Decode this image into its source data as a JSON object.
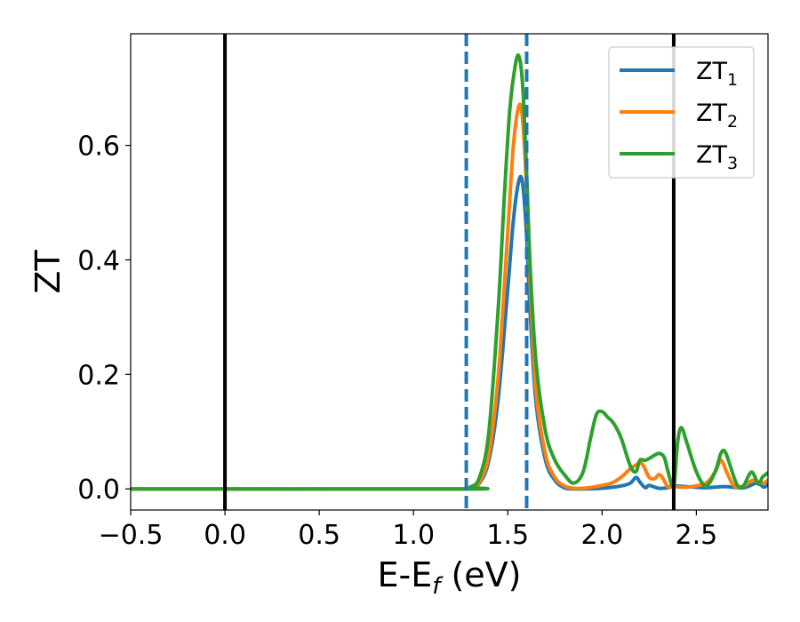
{
  "chart_data": {
    "type": "line",
    "xlabel_main": "E-E",
    "xlabel_sub": "f",
    "xlabel_unit": " (eV)",
    "ylabel": "ZT",
    "xlim": [
      -0.5,
      2.88
    ],
    "ylim": [
      -0.037,
      0.795
    ],
    "xticks": [
      -0.5,
      0.0,
      0.5,
      1.0,
      1.5,
      2.0,
      2.5
    ],
    "xtick_labels": [
      "−0.5",
      "0.0",
      "0.5",
      "1.0",
      "1.5",
      "2.0",
      "2.5"
    ],
    "yticks": [
      0.0,
      0.2,
      0.4,
      0.6
    ],
    "ytick_labels": [
      "0.0",
      "0.2",
      "0.4",
      "0.6"
    ],
    "grid": false,
    "legend_position": "top-right",
    "vlines": [
      {
        "x": 0.0,
        "style": "solid",
        "color": "#000000"
      },
      {
        "x": 2.38,
        "style": "solid",
        "color": "#000000"
      },
      {
        "x": 1.28,
        "style": "dashed",
        "color": "#1f77b4"
      },
      {
        "x": 1.6,
        "style": "dashed",
        "color": "#1f77b4"
      }
    ],
    "series": [
      {
        "name": "ZT",
        "subscript": "1",
        "color": "#1f77b4",
        "x": [
          -0.5,
          1.25,
          1.3,
          1.35,
          1.4,
          1.45,
          1.5,
          1.53,
          1.56,
          1.58,
          1.6,
          1.62,
          1.65,
          1.7,
          1.75,
          1.8,
          1.85,
          1.9,
          2.0,
          2.1,
          2.15,
          2.18,
          2.2,
          2.23,
          2.25,
          2.3,
          2.35,
          2.38,
          2.45,
          2.55,
          2.65,
          2.75,
          2.82,
          2.86,
          2.88
        ],
        "y": [
          0.0,
          0.0,
          0.002,
          0.01,
          0.05,
          0.16,
          0.35,
          0.47,
          0.54,
          0.53,
          0.44,
          0.3,
          0.15,
          0.05,
          0.015,
          0.002,
          0.0,
          0.0,
          0.001,
          0.005,
          0.01,
          0.02,
          0.012,
          0.002,
          0.006,
          0.001,
          0.002,
          0.005,
          0.004,
          0.002,
          0.004,
          0.002,
          0.01,
          0.003,
          0.01
        ]
      },
      {
        "name": "ZT",
        "subscript": "2",
        "color": "#ff7f0e",
        "x": [
          -0.5,
          1.25,
          1.3,
          1.35,
          1.4,
          1.45,
          1.5,
          1.53,
          1.56,
          1.58,
          1.6,
          1.62,
          1.65,
          1.7,
          1.75,
          1.8,
          1.85,
          1.9,
          1.95,
          2.0,
          2.05,
          2.1,
          2.15,
          2.2,
          2.22,
          2.25,
          2.28,
          2.3,
          2.32,
          2.35,
          2.38,
          2.45,
          2.55,
          2.6,
          2.63,
          2.66,
          2.7,
          2.75,
          2.8,
          2.85,
          2.88
        ],
        "y": [
          0.0,
          0.0,
          0.002,
          0.012,
          0.06,
          0.2,
          0.45,
          0.6,
          0.67,
          0.64,
          0.52,
          0.35,
          0.17,
          0.06,
          0.02,
          0.005,
          0.001,
          0.001,
          0.003,
          0.006,
          0.01,
          0.02,
          0.035,
          0.045,
          0.04,
          0.02,
          0.018,
          0.025,
          0.02,
          0.003,
          0.004,
          0.003,
          0.01,
          0.03,
          0.05,
          0.03,
          0.005,
          0.005,
          0.015,
          0.01,
          0.015
        ]
      },
      {
        "name": "ZT",
        "subscript": "3",
        "color": "#2ca02c",
        "x": [
          -0.5,
          1.25,
          1.3,
          1.35,
          1.4,
          1.45,
          1.48,
          1.51,
          1.54,
          1.56,
          1.58,
          1.6,
          1.62,
          1.65,
          1.7,
          1.75,
          1.8,
          1.85,
          1.9,
          1.94,
          1.97,
          2.0,
          2.03,
          2.06,
          2.1,
          2.15,
          2.18,
          2.2,
          2.23,
          2.26,
          2.3,
          2.33,
          2.35,
          2.38,
          2.4,
          2.42,
          2.45,
          2.5,
          2.55,
          2.6,
          2.63,
          2.65,
          2.67,
          2.7,
          2.72,
          2.75,
          2.78,
          2.8,
          2.83,
          2.85,
          2.88
        ],
        "y": [
          0.0,
          0.0,
          0.003,
          0.02,
          0.1,
          0.32,
          0.5,
          0.66,
          0.74,
          0.755,
          0.7,
          0.55,
          0.38,
          0.22,
          0.1,
          0.05,
          0.025,
          0.01,
          0.03,
          0.09,
          0.13,
          0.135,
          0.125,
          0.115,
          0.09,
          0.04,
          0.03,
          0.05,
          0.05,
          0.055,
          0.062,
          0.055,
          0.03,
          0.005,
          0.08,
          0.107,
          0.08,
          0.03,
          0.005,
          0.03,
          0.062,
          0.066,
          0.05,
          0.02,
          0.005,
          0.005,
          0.025,
          0.028,
          0.008,
          0.02,
          0.028
        ]
      }
    ]
  }
}
